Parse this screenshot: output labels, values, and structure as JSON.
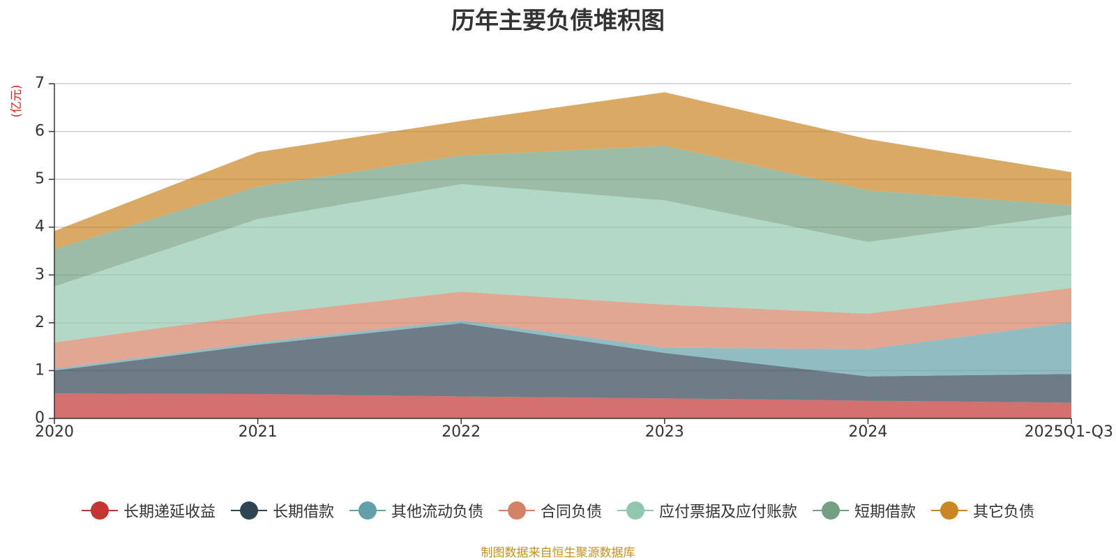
{
  "chart_data": {
    "type": "area",
    "stacked": true,
    "title": "历年主要负债堆积图",
    "ylabel": "(亿元)",
    "xlabel": "",
    "categories": [
      "2020",
      "2021",
      "2022",
      "2023",
      "2024",
      "2025Q1-Q3"
    ],
    "ylim": [
      0,
      7
    ],
    "yticks": [
      0,
      1,
      2,
      3,
      4,
      5,
      6,
      7
    ],
    "grid": true,
    "legend_position": "bottom",
    "series": [
      {
        "name": "长期递延收益",
        "color": "#c23531",
        "values": [
          0.52,
          0.51,
          0.46,
          0.42,
          0.37,
          0.33
        ]
      },
      {
        "name": "长期借款",
        "color": "#2f4554",
        "values": [
          0.48,
          1.03,
          1.53,
          0.95,
          0.51,
          0.6
        ]
      },
      {
        "name": "其他流动负债",
        "color": "#61a0a8",
        "values": [
          0.04,
          0.05,
          0.06,
          0.11,
          0.57,
          1.08
        ]
      },
      {
        "name": "合同负债",
        "color": "#d48265",
        "values": [
          0.55,
          0.58,
          0.6,
          0.9,
          0.74,
          0.72
        ]
      },
      {
        "name": "应付票据及应付账款",
        "color": "#91c7ae",
        "values": [
          1.17,
          2.0,
          2.25,
          2.18,
          1.5,
          1.53
        ]
      },
      {
        "name": "短期借款",
        "color": "#749f83",
        "values": [
          0.78,
          0.68,
          0.6,
          1.14,
          1.08,
          0.2
        ]
      },
      {
        "name": "其它负债",
        "color": "#ca8622",
        "values": [
          0.38,
          0.72,
          0.72,
          1.12,
          1.07,
          0.69
        ]
      }
    ]
  },
  "footer": {
    "source_note": "制图数据来自恒生聚源数据库"
  }
}
